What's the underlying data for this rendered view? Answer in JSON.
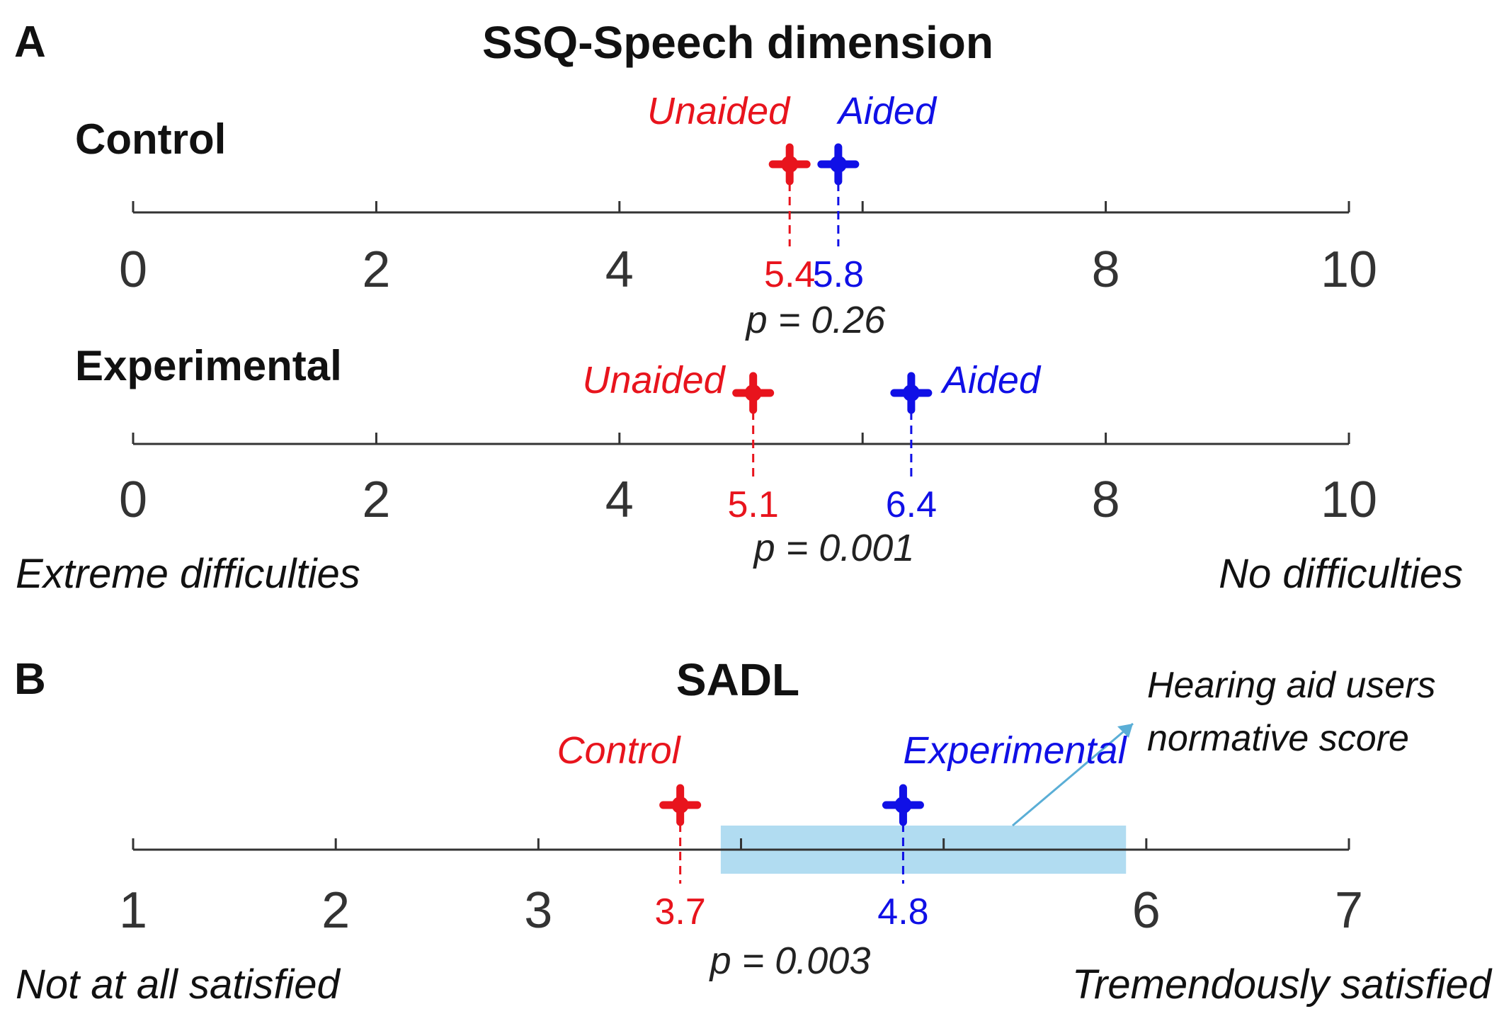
{
  "colors": {
    "unaided": "#e8141d",
    "aided": "#1010e6",
    "axis": "#333333",
    "band": "#a8d8f0",
    "arrow": "#5aaed6"
  },
  "chart_data": [
    {
      "id": "ssq-control",
      "type": "scatter",
      "panel": "A",
      "title": "SSQ-Speech dimension",
      "group": "Control",
      "xlim": [
        0,
        10
      ],
      "ticks": [
        0,
        2,
        4,
        6,
        8,
        10
      ],
      "tick_labels": [
        "0",
        "2",
        "4",
        "",
        "8",
        "10"
      ],
      "series": [
        {
          "name": "Unaided",
          "x": 5.4,
          "label": "5.4",
          "color": "#e8141d"
        },
        {
          "name": "Aided",
          "x": 5.8,
          "label": "5.8",
          "color": "#1010e6"
        }
      ],
      "p_value": "p = 0.26"
    },
    {
      "id": "ssq-experimental",
      "type": "scatter",
      "panel": "A",
      "group": "Experimental",
      "xlim": [
        0,
        10
      ],
      "ticks": [
        0,
        2,
        4,
        6,
        8,
        10
      ],
      "tick_labels": [
        "0",
        "2",
        "4",
        "",
        "8",
        "10"
      ],
      "series": [
        {
          "name": "Unaided",
          "x": 5.1,
          "label": "5.1",
          "color": "#e8141d"
        },
        {
          "name": "Aided",
          "x": 6.4,
          "label": "6.4",
          "color": "#1010e6"
        }
      ],
      "p_value": "p = 0.001",
      "anchors": {
        "low": "Extreme difficulties",
        "high": "No difficulties"
      }
    },
    {
      "id": "sadl",
      "type": "scatter",
      "panel": "B",
      "title": "SADL",
      "xlim": [
        1,
        7
      ],
      "ticks": [
        1,
        2,
        3,
        4,
        5,
        6,
        7
      ],
      "tick_labels": [
        "1",
        "2",
        "3",
        "",
        "",
        "6",
        "7"
      ],
      "series": [
        {
          "name": "Control",
          "x": 3.7,
          "label": "3.7",
          "color": "#e8141d"
        },
        {
          "name": "Experimental",
          "x": 4.8,
          "label": "4.8",
          "color": "#1010e6"
        }
      ],
      "p_value": "p = 0.003",
      "normative_range": [
        3.9,
        5.9
      ],
      "annotation": [
        "Hearing aid users",
        "normative score"
      ],
      "anchors": {
        "low": "Not at all satisfied",
        "high": "Tremendously satisfied"
      }
    }
  ]
}
